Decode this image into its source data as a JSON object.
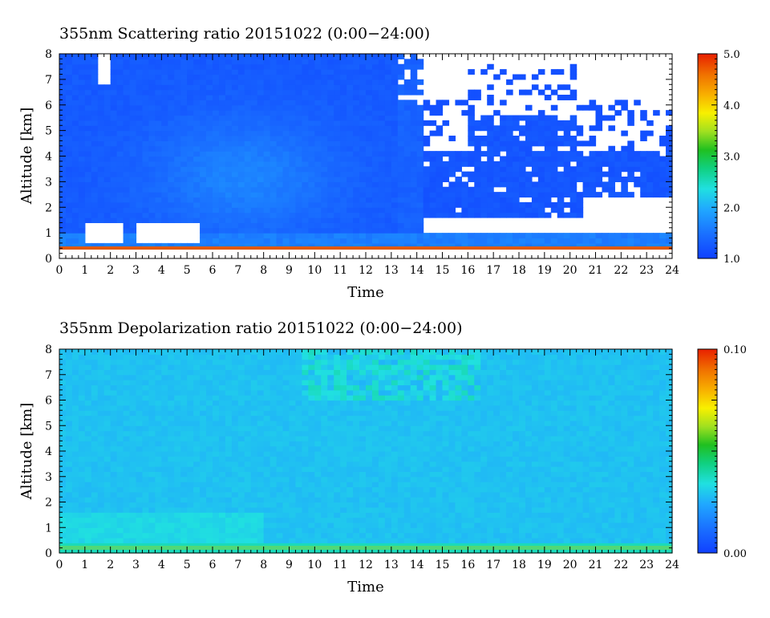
{
  "chart_data": [
    {
      "type": "heatmap",
      "title": "355nm Scattering ratio  20151022 (0:00−24:00)",
      "xlabel": "Time",
      "ylabel": "Altitude [km]",
      "xlim": [
        0,
        24
      ],
      "ylim": [
        0,
        8
      ],
      "x_ticks": [
        0,
        1,
        2,
        3,
        4,
        5,
        6,
        7,
        8,
        9,
        10,
        11,
        12,
        13,
        14,
        15,
        16,
        17,
        18,
        19,
        20,
        21,
        22,
        23,
        24
      ],
      "y_ticks": [
        0,
        1,
        2,
        3,
        4,
        5,
        6,
        7,
        8
      ],
      "colorbar": {
        "min": 1.0,
        "max": 5.0,
        "ticks": [
          "1.0",
          "2.0",
          "3.0",
          "4.0",
          "5.0"
        ]
      },
      "background_color": "#ffffff"
    },
    {
      "type": "heatmap",
      "title": "355nm Depolarization ratio  20151022 (0:00−24:00)",
      "xlabel": "Time",
      "ylabel": "Altitude [km]",
      "xlim": [
        0,
        24
      ],
      "ylim": [
        0,
        8
      ],
      "x_ticks": [
        0,
        1,
        2,
        3,
        4,
        5,
        6,
        7,
        8,
        9,
        10,
        11,
        12,
        13,
        14,
        15,
        16,
        17,
        18,
        19,
        20,
        21,
        22,
        23,
        24
      ],
      "y_ticks": [
        0,
        1,
        2,
        3,
        4,
        5,
        6,
        7,
        8
      ],
      "colorbar": {
        "min": 0.0,
        "max": 0.1,
        "ticks": [
          "0.00",
          "0.10"
        ]
      },
      "background_color": "#ffffff"
    }
  ]
}
